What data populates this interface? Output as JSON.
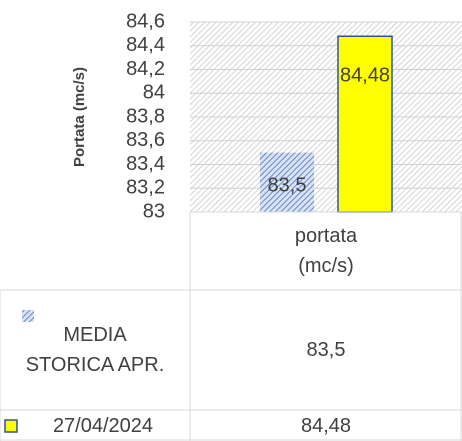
{
  "chart_data": {
    "type": "bar",
    "y_axis_label": "Portata (mc/s)",
    "categories": [
      "portata (mc/s)"
    ],
    "series": [
      {
        "name": "MEDIA STORICA APR.",
        "color": "#4472c4",
        "values": [
          83.5
        ],
        "value_labels": [
          "83,5"
        ]
      },
      {
        "name": "27/04/2024",
        "color": "#ffff00",
        "values": [
          84.48
        ],
        "value_labels": [
          "84,48"
        ]
      }
    ],
    "ylim": [
      83,
      84.6
    ],
    "yticks": [
      83,
      {
        "value": 83.2,
        "label": "83,2"
      },
      {
        "value": 83.4,
        "label": "83,4"
      },
      {
        "value": 83.6,
        "label": "83,6"
      },
      {
        "value": 83.8,
        "label": "83,8"
      },
      84,
      {
        "value": 84.2,
        "label": "84,2"
      },
      {
        "value": 84.4,
        "label": "84,4"
      },
      {
        "value": 84.6,
        "label": "84,6"
      }
    ],
    "grid": true,
    "data_table": true
  }
}
